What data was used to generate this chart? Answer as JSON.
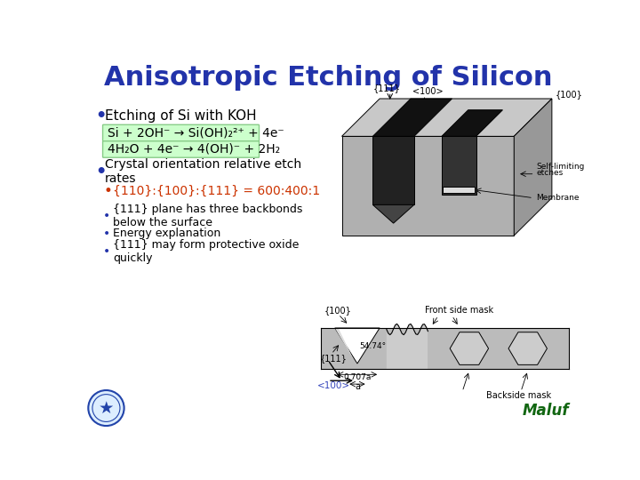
{
  "title": "Anisotropic Etching of Silicon",
  "title_color": "#2233AA",
  "title_fontsize": 22,
  "bg_color": "#FFFFFF",
  "bullet1_text": "Etching of Si with KOH",
  "eq1": "Si + 2OH⁻ → Si(OH)₂²⁺ + 4e⁻",
  "eq2": "4H₂O + 4e⁻ → 4(OH)⁻ + 2H₂",
  "eq_bg": "#CCFFCC",
  "eq_border": "#88CC88",
  "bullet2_text": "Crystal orientation relative etch\nrates",
  "sub_bullet_orange": "{110}:{100}:{111} = 600:400:1",
  "sub_bullet_orange_color": "#CC3300",
  "sub_bullets": [
    "{111} plane has three backbonds\nbelow the surface",
    "Energy explanation",
    "{111} may form protective oxide\nquickly"
  ],
  "text_color": "#000000",
  "bullet_color": "#2233AA",
  "body_fontsize": 10,
  "eq_fontsize": 10,
  "author": "Maluf",
  "author_color": "#116611",
  "author_fontsize": 12,
  "gray_light": "#BBBBBB",
  "gray_mid": "#999999",
  "gray_dark": "#555555",
  "black": "#000000",
  "white": "#FFFFFF"
}
